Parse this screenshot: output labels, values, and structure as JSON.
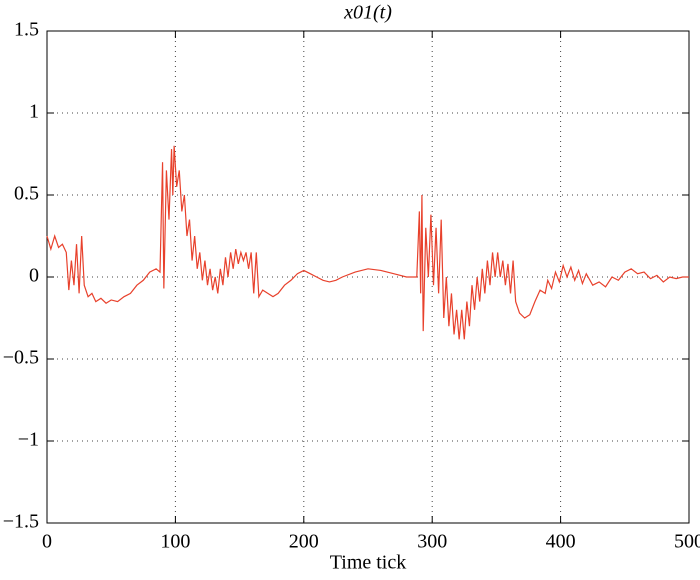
{
  "chart_data": {
    "type": "line",
    "title": "x01(t)",
    "xlabel": "Time tick",
    "xlim": [
      0,
      500
    ],
    "xticks": [
      0,
      100,
      200,
      300,
      400,
      500
    ],
    "ylim": [
      -1.5,
      1.5
    ],
    "yticks": [
      {
        "value": -1.5,
        "label": "−1.5"
      },
      {
        "value": -1,
        "label": "−1"
      },
      {
        "value": -0.5,
        "label": "−0.5"
      },
      0,
      0.5,
      1,
      1.5
    ],
    "grid": true,
    "x": [
      0,
      3,
      6,
      9,
      12,
      15,
      17,
      19,
      21,
      23,
      25,
      27,
      29,
      32,
      35,
      38,
      42,
      46,
      50,
      55,
      60,
      65,
      70,
      75,
      80,
      85,
      88,
      90,
      91,
      93,
      95,
      97,
      98,
      99,
      101,
      103,
      105,
      107,
      109,
      111,
      113,
      115,
      117,
      119,
      121,
      123,
      125,
      127,
      129,
      131,
      133,
      135,
      137,
      139,
      141,
      143,
      145,
      147,
      149,
      151,
      153,
      155,
      157,
      159,
      161,
      163,
      165,
      168,
      172,
      176,
      180,
      185,
      190,
      195,
      200,
      205,
      210,
      215,
      220,
      225,
      230,
      240,
      250,
      260,
      270,
      280,
      288,
      290,
      291,
      292,
      293,
      295,
      297,
      299,
      301,
      303,
      305,
      307,
      309,
      311,
      313,
      315,
      317,
      319,
      321,
      323,
      325,
      327,
      329,
      331,
      333,
      335,
      337,
      339,
      341,
      343,
      345,
      347,
      349,
      351,
      353,
      355,
      357,
      359,
      361,
      363,
      365,
      368,
      372,
      376,
      380,
      384,
      388,
      390,
      393,
      396,
      399,
      402,
      405,
      408,
      411,
      414,
      417,
      420,
      425,
      430,
      435,
      440,
      445,
      450,
      455,
      460,
      465,
      470,
      475,
      480,
      485,
      490,
      495,
      500
    ],
    "series": [
      {
        "name": "x01",
        "color": "#e8412c",
        "values": [
          0.25,
          0.17,
          0.25,
          0.18,
          0.2,
          0.15,
          -0.08,
          0.1,
          -0.05,
          0.2,
          -0.1,
          0.25,
          -0.05,
          -0.12,
          -0.1,
          -0.15,
          -0.13,
          -0.16,
          -0.14,
          -0.15,
          -0.12,
          -0.1,
          -0.05,
          -0.02,
          0.03,
          0.05,
          0.03,
          0.7,
          -0.07,
          0.65,
          0.35,
          0.78,
          0.5,
          0.8,
          0.55,
          0.65,
          0.4,
          0.5,
          0.25,
          0.35,
          0.1,
          0.25,
          0.05,
          0.15,
          -0.02,
          0.1,
          -0.05,
          0.05,
          -0.08,
          0.0,
          -0.1,
          0.05,
          -0.05,
          0.12,
          0.0,
          0.15,
          0.05,
          0.17,
          0.08,
          0.15,
          0.1,
          0.15,
          0.05,
          0.15,
          -0.1,
          0.15,
          -0.12,
          -0.08,
          -0.1,
          -0.12,
          -0.1,
          -0.05,
          -0.02,
          0.02,
          0.04,
          0.02,
          0.0,
          -0.02,
          -0.03,
          -0.02,
          0.0,
          0.03,
          0.05,
          0.04,
          0.02,
          0.0,
          0.0,
          0.4,
          -0.1,
          0.5,
          -0.33,
          0.3,
          0.0,
          0.38,
          -0.05,
          0.3,
          -0.1,
          0.35,
          -0.25,
          0.0,
          -0.3,
          -0.1,
          -0.35,
          -0.2,
          -0.38,
          -0.2,
          -0.38,
          -0.15,
          -0.3,
          -0.05,
          -0.2,
          0.0,
          -0.15,
          0.05,
          -0.1,
          0.1,
          -0.05,
          0.15,
          0.0,
          0.15,
          0.0,
          0.1,
          -0.05,
          0.08,
          -0.1,
          0.1,
          -0.15,
          -0.22,
          -0.25,
          -0.23,
          -0.15,
          -0.08,
          -0.1,
          -0.02,
          -0.07,
          0.03,
          -0.03,
          0.07,
          0.0,
          0.06,
          -0.02,
          0.04,
          -0.04,
          0.02,
          -0.05,
          -0.03,
          -0.06,
          0.0,
          -0.02,
          0.03,
          0.05,
          0.02,
          0.03,
          -0.01,
          0.01,
          -0.03,
          0.0,
          -0.01,
          0.0,
          0.0
        ]
      }
    ]
  }
}
